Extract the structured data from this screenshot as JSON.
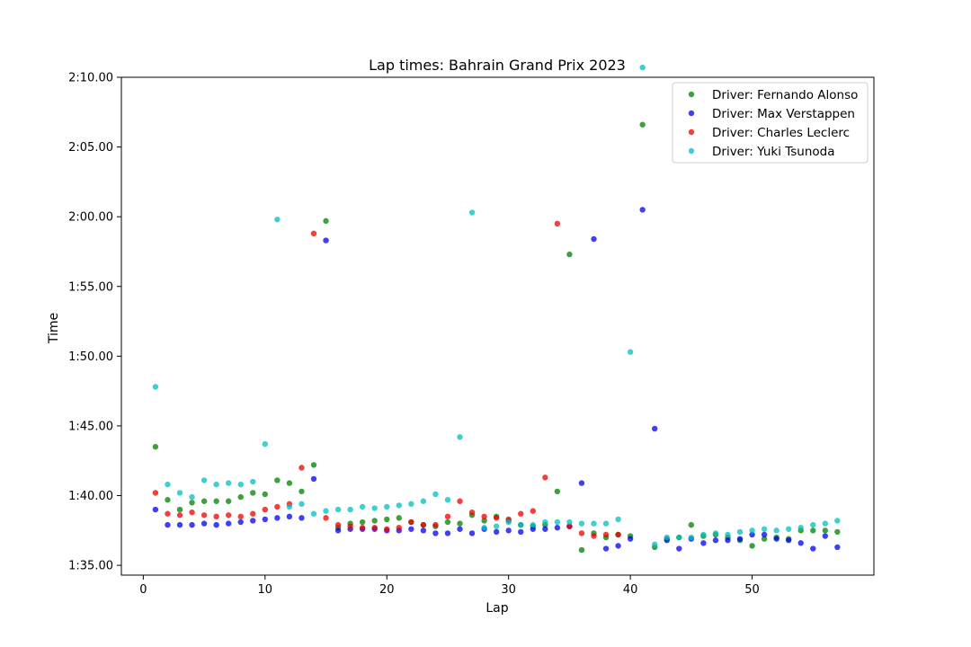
{
  "chart_data": {
    "type": "scatter",
    "title": "Lap times: Bahrain Grand Prix 2023",
    "xlabel": "Lap",
    "ylabel": "Time",
    "xlim": [
      -1.8,
      60.0
    ],
    "ylim": [
      94.3,
      130.0
    ],
    "x_ticks": [
      0,
      10,
      20,
      30,
      40,
      50
    ],
    "y_ticks": [
      95,
      100,
      105,
      110,
      115,
      120,
      125,
      130
    ],
    "y_tick_labels": [
      "1:35.00",
      "1:40.00",
      "1:45.00",
      "1:50.00",
      "1:55.00",
      "2:00.00",
      "2:05.00",
      "2:10.00"
    ],
    "grid": false,
    "legend_position": "top-right",
    "series": [
      {
        "name": "Driver: Fernando Alonso",
        "color": "#008000",
        "x": [
          1,
          2,
          3,
          4,
          5,
          6,
          7,
          8,
          9,
          10,
          11,
          12,
          13,
          14,
          15,
          16,
          17,
          18,
          19,
          20,
          21,
          22,
          23,
          24,
          25,
          26,
          27,
          28,
          29,
          30,
          31,
          32,
          33,
          34,
          35,
          36,
          37,
          38,
          39,
          40,
          41,
          42,
          43,
          44,
          45,
          46,
          47,
          48,
          49,
          50,
          51,
          52,
          53,
          54,
          55,
          56,
          57
        ],
        "y": [
          103.5,
          99.7,
          99.0,
          99.5,
          99.6,
          99.6,
          99.6,
          99.9,
          100.2,
          100.1,
          101.1,
          100.9,
          100.3,
          102.2,
          119.7,
          97.7,
          98.0,
          98.1,
          98.2,
          98.3,
          98.4,
          98.1,
          97.9,
          97.8,
          98.1,
          98.0,
          98.6,
          98.2,
          98.5,
          98.2,
          97.9,
          97.8,
          97.9,
          100.3,
          117.3,
          96.1,
          97.3,
          97.0,
          97.2,
          97.1,
          126.6,
          96.3,
          96.9,
          97.0,
          97.9,
          97.1,
          97.2,
          97.0,
          96.8,
          96.4,
          96.9,
          97.0,
          96.9,
          97.5,
          97.5,
          97.5,
          97.4
        ]
      },
      {
        "name": "Driver: Max Verstappen",
        "color": "#0000ee",
        "x": [
          1,
          2,
          3,
          4,
          5,
          6,
          7,
          8,
          9,
          10,
          11,
          12,
          13,
          14,
          15,
          16,
          17,
          18,
          19,
          20,
          21,
          22,
          23,
          24,
          25,
          26,
          27,
          28,
          29,
          30,
          31,
          32,
          33,
          34,
          35,
          36,
          37,
          38,
          39,
          40,
          41,
          42,
          43,
          44,
          45,
          46,
          47,
          48,
          49,
          50,
          51,
          52,
          53,
          54,
          55,
          56,
          57
        ],
        "y": [
          99.0,
          97.9,
          97.9,
          97.9,
          98.0,
          97.9,
          98.0,
          98.1,
          98.2,
          98.3,
          98.4,
          98.5,
          98.4,
          101.2,
          118.3,
          97.5,
          97.6,
          97.6,
          97.6,
          97.5,
          97.5,
          97.6,
          97.5,
          97.3,
          97.3,
          97.6,
          97.3,
          97.6,
          97.4,
          97.5,
          97.4,
          97.6,
          97.6,
          97.7,
          97.8,
          100.9,
          118.4,
          96.2,
          96.4,
          96.9,
          120.5,
          104.8,
          96.8,
          96.2,
          96.9,
          96.6,
          96.8,
          96.8,
          96.9,
          97.2,
          97.2,
          96.9,
          96.8,
          96.6,
          96.2,
          97.1,
          96.3
        ]
      },
      {
        "name": "Driver: Charles Leclerc",
        "color": "#ee0000",
        "x": [
          1,
          2,
          3,
          4,
          5,
          6,
          7,
          8,
          9,
          10,
          11,
          12,
          13,
          14,
          15,
          16,
          17,
          18,
          19,
          20,
          21,
          22,
          23,
          24,
          25,
          26,
          27,
          28,
          29,
          30,
          31,
          32,
          33,
          34,
          35,
          36,
          37,
          38,
          39
        ],
        "y": [
          100.2,
          98.7,
          98.6,
          98.8,
          98.6,
          98.5,
          98.6,
          98.5,
          98.7,
          99.0,
          99.2,
          99.4,
          102.0,
          118.8,
          98.4,
          97.9,
          97.8,
          97.7,
          97.7,
          97.6,
          97.7,
          98.1,
          97.9,
          97.9,
          98.5,
          99.6,
          98.8,
          98.5,
          98.4,
          98.3,
          98.7,
          98.9,
          101.3,
          119.5,
          97.8,
          97.3,
          97.1,
          97.2,
          97.2
        ]
      },
      {
        "name": "Driver: Yuki Tsunoda",
        "color": "#00bfbf",
        "x": [
          1,
          2,
          3,
          4,
          5,
          6,
          7,
          8,
          9,
          10,
          11,
          12,
          13,
          14,
          15,
          16,
          17,
          18,
          19,
          20,
          21,
          22,
          23,
          24,
          25,
          26,
          27,
          28,
          29,
          30,
          31,
          32,
          33,
          34,
          35,
          36,
          37,
          38,
          39,
          40,
          41,
          42,
          43,
          44,
          45,
          46,
          47,
          48,
          49,
          50,
          51,
          52,
          53,
          54,
          55,
          56,
          57
        ],
        "y": [
          107.8,
          100.8,
          100.2,
          99.9,
          101.1,
          100.8,
          100.9,
          100.8,
          101.0,
          103.7,
          119.8,
          99.2,
          99.4,
          98.7,
          98.9,
          99.0,
          99.0,
          99.2,
          99.1,
          99.2,
          99.3,
          99.4,
          99.6,
          100.1,
          99.7,
          104.2,
          120.3,
          97.7,
          97.8,
          98.1,
          97.9,
          97.9,
          98.1,
          98.1,
          98.1,
          98.0,
          98.0,
          98.0,
          98.3,
          110.3,
          130.7,
          96.5,
          97.0,
          97.0,
          97.0,
          97.2,
          97.3,
          97.2,
          97.4,
          97.5,
          97.6,
          97.5,
          97.6,
          97.7,
          97.9,
          98.0,
          98.2
        ]
      }
    ]
  }
}
